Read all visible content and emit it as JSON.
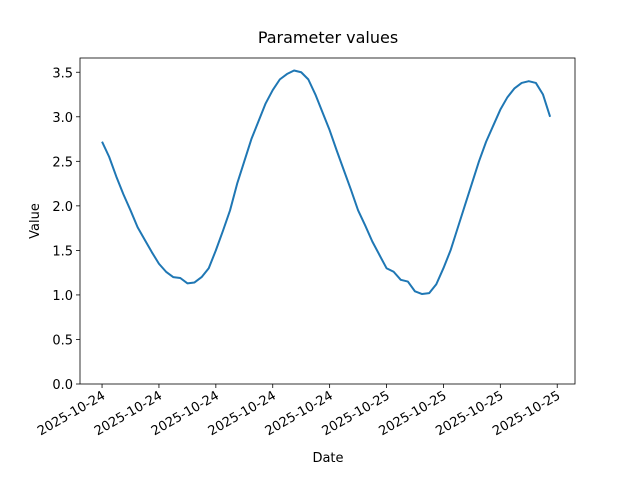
{
  "chart_data": {
    "type": "line",
    "title": "Parameter values",
    "x_label": "Date",
    "y_label": "Value",
    "series": [
      {
        "color": "#1f77b4",
        "values": [
          2.72,
          2.55,
          2.33,
          2.13,
          1.95,
          1.76,
          1.62,
          1.48,
          1.35,
          1.26,
          1.2,
          1.19,
          1.13,
          1.14,
          1.2,
          1.3,
          1.5,
          1.72,
          1.95,
          2.25,
          2.5,
          2.75,
          2.95,
          3.15,
          3.3,
          3.42,
          3.48,
          3.52,
          3.5,
          3.42,
          3.25,
          3.05,
          2.85,
          2.62,
          2.4,
          2.18,
          1.95,
          1.78,
          1.6,
          1.45,
          1.3,
          1.26,
          1.17,
          1.15,
          1.04,
          1.01,
          1.02,
          1.12,
          1.3,
          1.5,
          1.75,
          2.0,
          2.25,
          2.5,
          2.72,
          2.9,
          3.08,
          3.22,
          3.32,
          3.38,
          3.4,
          3.38,
          3.25,
          3.0
        ]
      }
    ],
    "xlim": [
      -3.1,
      66.5
    ],
    "xticks": [
      {
        "value": 0,
        "label": "2025-10-24"
      },
      {
        "value": 8,
        "label": "2025-10-24"
      },
      {
        "value": 16,
        "label": "2025-10-24"
      },
      {
        "value": 24,
        "label": "2025-10-24"
      },
      {
        "value": 32,
        "label": "2025-10-24"
      },
      {
        "value": 40,
        "label": "2025-10-25"
      },
      {
        "value": 48,
        "label": "2025-10-25"
      },
      {
        "value": 56,
        "label": "2025-10-25"
      },
      {
        "value": 64,
        "label": "2025-10-25"
      }
    ],
    "ylim": [
      0,
      3.66
    ],
    "yticks": [
      {
        "value": 0,
        "label": "0.0"
      },
      {
        "value": 0.5,
        "label": "0.5"
      },
      {
        "value": 1,
        "label": "1.0"
      },
      {
        "value": 1.5,
        "label": "1.5"
      },
      {
        "value": 2,
        "label": "2.0"
      },
      {
        "value": 2.5,
        "label": "2.5"
      },
      {
        "value": 3,
        "label": "3.0"
      },
      {
        "value": 3.5,
        "label": "3.5"
      }
    ]
  }
}
